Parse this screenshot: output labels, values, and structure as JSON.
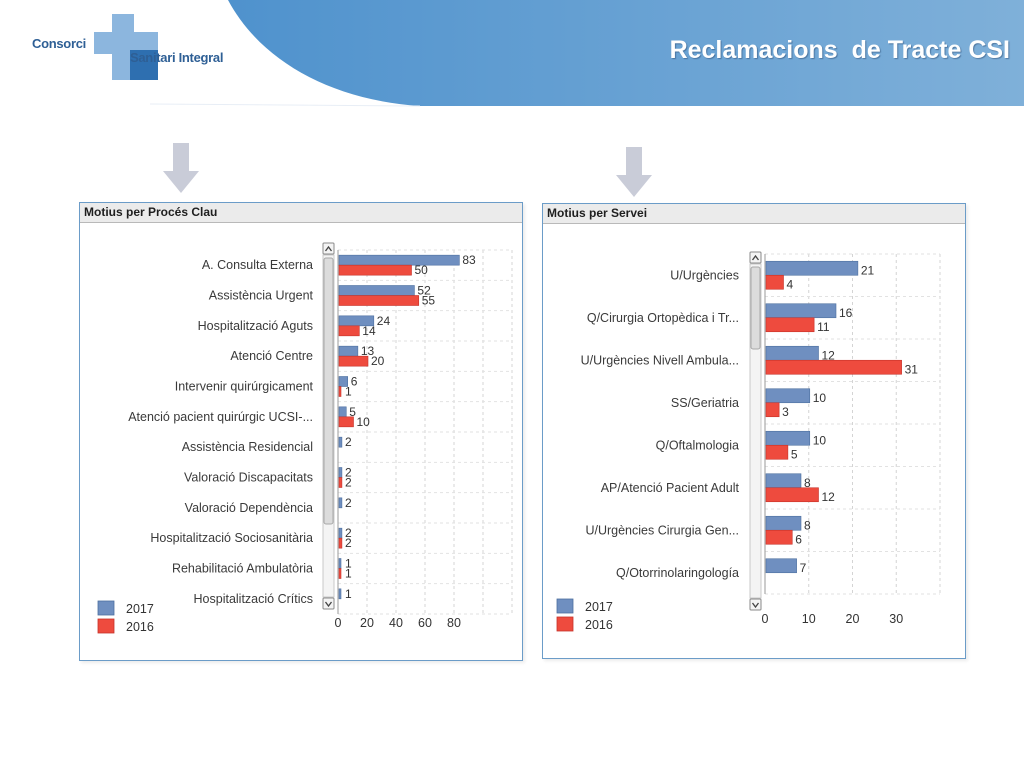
{
  "header": {
    "logo_line1": "Consorci",
    "logo_line2": "Sanitari Integral",
    "title": "Reclamacions  de Tracte CSI"
  },
  "colors": {
    "series_2017": "#6f8fc0",
    "series_2016": "#ee4b3e",
    "header_blue": "#5b9bd0",
    "panel_border": "#6b9cc8",
    "arrow": "#c9ccd8"
  },
  "icons": {
    "arrow": "arrow-down-icon",
    "scroll_up": "chevron-up-icon",
    "scroll_down": "chevron-down-icon"
  },
  "chart_data": [
    {
      "type": "bar",
      "orientation": "horizontal",
      "title": "Motius per Procés Clau",
      "categories": [
        "A. Consulta Externa",
        "Assistència Urgent",
        "Hospitalització Aguts",
        "Atenció Centre",
        "Intervenir quirúrgicament",
        "Atenció pacient quirúrgic UCSI-...",
        "Assistència Residencial",
        "Valoració Discapacitats",
        "Valoració Dependència",
        "Hospitalització Sociosanitària",
        "Rehabilitació Ambulatòria",
        "Hospitalització Crítics"
      ],
      "series": [
        {
          "name": "2017",
          "values": [
            83,
            52,
            24,
            13,
            6,
            5,
            2,
            2,
            2,
            2,
            1,
            1
          ]
        },
        {
          "name": "2016",
          "values": [
            50,
            55,
            14,
            20,
            1,
            10,
            null,
            2,
            null,
            2,
            1,
            null
          ]
        }
      ],
      "xlim": [
        0,
        120
      ],
      "xticks": [
        0,
        20,
        40,
        60,
        80
      ],
      "grid": true,
      "legend_position": "bottom-left"
    },
    {
      "type": "bar",
      "orientation": "horizontal",
      "title": "Motius per Servei",
      "categories": [
        "U/Urgències",
        "Q/Cirurgia Ortopèdica i Tr...",
        "U/Urgències Nivell Ambula...",
        "SS/Geriatria",
        "Q/Oftalmologia",
        "AP/Atenció Pacient Adult",
        "U/Urgències Cirurgia Gen...",
        "Q/Otorrinolaringología"
      ],
      "series": [
        {
          "name": "2017",
          "values": [
            21,
            16,
            12,
            10,
            10,
            8,
            8,
            7
          ]
        },
        {
          "name": "2016",
          "values": [
            4,
            11,
            31,
            3,
            5,
            12,
            6,
            null
          ]
        }
      ],
      "xlim": [
        0,
        40
      ],
      "xticks": [
        0,
        10,
        20,
        30
      ],
      "grid": true,
      "legend_position": "bottom-left"
    }
  ]
}
